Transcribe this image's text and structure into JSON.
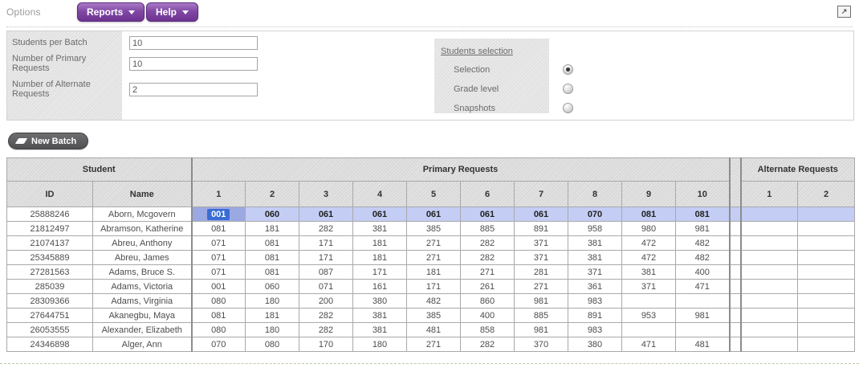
{
  "topbar": {
    "options_label": "Options",
    "reports_label": "Reports",
    "help_label": "Help"
  },
  "form": {
    "fields": [
      {
        "label": "Students per Batch",
        "value": "10"
      },
      {
        "label": "Number of Primary Requests",
        "value": "10"
      },
      {
        "label": "Number of Alternate Requests",
        "value": "2"
      }
    ],
    "students_selection": {
      "title": "Students selection",
      "options": [
        {
          "label": "Selection",
          "selected": true
        },
        {
          "label": "Grade level",
          "selected": false
        },
        {
          "label": "Snapshots",
          "selected": false
        }
      ]
    }
  },
  "toolbar": {
    "new_batch_label": "New Batch"
  },
  "table": {
    "group_headers": {
      "student": "Student",
      "primary": "Primary Requests",
      "alternate": "Alternate Requests"
    },
    "sub_headers": {
      "id": "ID",
      "name": "Name",
      "primary": [
        "1",
        "2",
        "3",
        "4",
        "5",
        "6",
        "7",
        "8",
        "9",
        "10"
      ],
      "alternate": [
        "1",
        "2"
      ]
    },
    "rows": [
      {
        "id": "25888246",
        "name": "Aborn, Mcgovern",
        "primary": [
          "001",
          "060",
          "061",
          "061",
          "061",
          "061",
          "061",
          "070",
          "081",
          "081"
        ],
        "alternate": [
          "",
          ""
        ],
        "highlighted": true,
        "selected_primary_index": 0
      },
      {
        "id": "21812497",
        "name": "Abramson, Katherine",
        "primary": [
          "081",
          "181",
          "282",
          "381",
          "385",
          "885",
          "891",
          "958",
          "980",
          "981"
        ],
        "alternate": [
          "",
          ""
        ]
      },
      {
        "id": "21074137",
        "name": "Abreu, Anthony",
        "primary": [
          "071",
          "081",
          "171",
          "181",
          "271",
          "282",
          "371",
          "381",
          "472",
          "482"
        ],
        "alternate": [
          "",
          ""
        ]
      },
      {
        "id": "25345889",
        "name": "Abreu, James",
        "primary": [
          "071",
          "081",
          "171",
          "181",
          "271",
          "282",
          "371",
          "381",
          "472",
          "482"
        ],
        "alternate": [
          "",
          ""
        ]
      },
      {
        "id": "27281563",
        "name": "Adams, Bruce S.",
        "primary": [
          "071",
          "081",
          "087",
          "171",
          "181",
          "271",
          "281",
          "371",
          "381",
          "400"
        ],
        "alternate": [
          "",
          ""
        ]
      },
      {
        "id": "285039",
        "name": "Adams, Victoria",
        "primary": [
          "001",
          "060",
          "071",
          "161",
          "171",
          "261",
          "271",
          "361",
          "371",
          "471"
        ],
        "alternate": [
          "",
          ""
        ]
      },
      {
        "id": "28309366",
        "name": "Adams, Virginia",
        "primary": [
          "080",
          "180",
          "200",
          "380",
          "482",
          "860",
          "981",
          "983",
          "",
          ""
        ],
        "alternate": [
          "",
          ""
        ]
      },
      {
        "id": "27644751",
        "name": "Akanegbu, Maya",
        "primary": [
          "081",
          "181",
          "282",
          "381",
          "385",
          "400",
          "885",
          "891",
          "953",
          "981"
        ],
        "alternate": [
          "",
          ""
        ]
      },
      {
        "id": "26053555",
        "name": "Alexander, Elizabeth",
        "primary": [
          "080",
          "180",
          "282",
          "381",
          "481",
          "858",
          "981",
          "983",
          "",
          ""
        ],
        "alternate": [
          "",
          ""
        ]
      },
      {
        "id": "24346898",
        "name": "Alger, Ann",
        "primary": [
          "070",
          "080",
          "170",
          "180",
          "271",
          "282",
          "370",
          "380",
          "471",
          "481"
        ],
        "alternate": [
          "",
          ""
        ]
      }
    ]
  },
  "colors": {
    "accent_purple": "#7a3d9c",
    "row_highlight": "#c4cdf4",
    "selected_cell_bg": "#9ba9e3",
    "selected_chip": "#3a6cd4",
    "new_batch_gray": "#58585a"
  }
}
